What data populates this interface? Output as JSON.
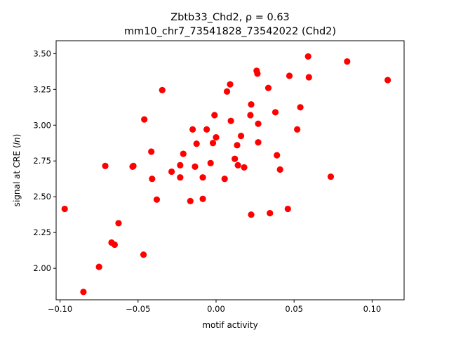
{
  "chart_data": {
    "type": "scatter",
    "title_line1": "Zbtb33_Chd2, ρ = 0.63",
    "title_line2": "mm10_chr7_73541828_73542022 (Chd2)",
    "xlabel": "motif activity",
    "ylabel_pre": "signal at CRE (",
    "ylabel_italic": "ln",
    "ylabel_post": ")",
    "xlim": [
      -0.1025,
      0.1205
    ],
    "ylim": [
      1.78,
      3.59
    ],
    "grid": false,
    "color": "#ff0000",
    "xticks": [
      {
        "value": -0.1,
        "label": "−0.10"
      },
      {
        "value": -0.05,
        "label": "−0.05"
      },
      {
        "value": 0.0,
        "label": "0.00"
      },
      {
        "value": 0.05,
        "label": "0.05"
      },
      {
        "value": 0.1,
        "label": "0.10"
      }
    ],
    "yticks": [
      {
        "value": 2.0,
        "label": "2.00"
      },
      {
        "value": 2.25,
        "label": "2.25"
      },
      {
        "value": 2.5,
        "label": "2.50"
      },
      {
        "value": 2.75,
        "label": "2.75"
      },
      {
        "value": 3.0,
        "label": "3.00"
      },
      {
        "value": 3.25,
        "label": "3.25"
      },
      {
        "value": 3.5,
        "label": "3.50"
      }
    ],
    "points": [
      {
        "x": -0.097,
        "y": 2.415
      },
      {
        "x": -0.085,
        "y": 1.835
      },
      {
        "x": -0.075,
        "y": 2.01
      },
      {
        "x": -0.071,
        "y": 2.715
      },
      {
        "x": -0.067,
        "y": 2.18
      },
      {
        "x": -0.065,
        "y": 2.165
      },
      {
        "x": -0.0625,
        "y": 2.315
      },
      {
        "x": -0.0535,
        "y": 2.71
      },
      {
        "x": -0.053,
        "y": 2.715
      },
      {
        "x": -0.0465,
        "y": 2.095
      },
      {
        "x": -0.046,
        "y": 3.04
      },
      {
        "x": -0.0415,
        "y": 2.815
      },
      {
        "x": -0.041,
        "y": 2.625
      },
      {
        "x": -0.038,
        "y": 2.48
      },
      {
        "x": -0.0345,
        "y": 3.245
      },
      {
        "x": -0.0285,
        "y": 2.675
      },
      {
        "x": -0.023,
        "y": 2.72
      },
      {
        "x": -0.023,
        "y": 2.635
      },
      {
        "x": -0.021,
        "y": 2.8
      },
      {
        "x": -0.0165,
        "y": 2.47
      },
      {
        "x": -0.015,
        "y": 2.97
      },
      {
        "x": -0.0135,
        "y": 2.71
      },
      {
        "x": -0.0125,
        "y": 2.87
      },
      {
        "x": -0.0085,
        "y": 2.635
      },
      {
        "x": -0.0085,
        "y": 2.485
      },
      {
        "x": -0.006,
        "y": 2.97
      },
      {
        "x": -0.0035,
        "y": 2.735
      },
      {
        "x": -0.002,
        "y": 2.875
      },
      {
        "x": -0.001,
        "y": 3.07
      },
      {
        "x": 0.0,
        "y": 2.915
      },
      {
        "x": 0.0055,
        "y": 2.625
      },
      {
        "x": 0.007,
        "y": 3.235
      },
      {
        "x": 0.009,
        "y": 3.285
      },
      {
        "x": 0.0095,
        "y": 3.03
      },
      {
        "x": 0.012,
        "y": 2.765
      },
      {
        "x": 0.0135,
        "y": 2.86
      },
      {
        "x": 0.014,
        "y": 2.72
      },
      {
        "x": 0.016,
        "y": 2.925
      },
      {
        "x": 0.018,
        "y": 2.705
      },
      {
        "x": 0.022,
        "y": 3.07
      },
      {
        "x": 0.0225,
        "y": 3.145
      },
      {
        "x": 0.0225,
        "y": 2.375
      },
      {
        "x": 0.026,
        "y": 3.38
      },
      {
        "x": 0.0265,
        "y": 3.36
      },
      {
        "x": 0.027,
        "y": 3.01
      },
      {
        "x": 0.027,
        "y": 2.88
      },
      {
        "x": 0.0335,
        "y": 3.26
      },
      {
        "x": 0.0345,
        "y": 2.385
      },
      {
        "x": 0.038,
        "y": 3.09
      },
      {
        "x": 0.039,
        "y": 2.79
      },
      {
        "x": 0.041,
        "y": 2.69
      },
      {
        "x": 0.046,
        "y": 2.415
      },
      {
        "x": 0.047,
        "y": 3.345
      },
      {
        "x": 0.052,
        "y": 2.97
      },
      {
        "x": 0.054,
        "y": 3.125
      },
      {
        "x": 0.059,
        "y": 3.48
      },
      {
        "x": 0.0595,
        "y": 3.335
      },
      {
        "x": 0.0735,
        "y": 2.64
      },
      {
        "x": 0.084,
        "y": 3.445
      },
      {
        "x": 0.11,
        "y": 3.315
      }
    ]
  }
}
